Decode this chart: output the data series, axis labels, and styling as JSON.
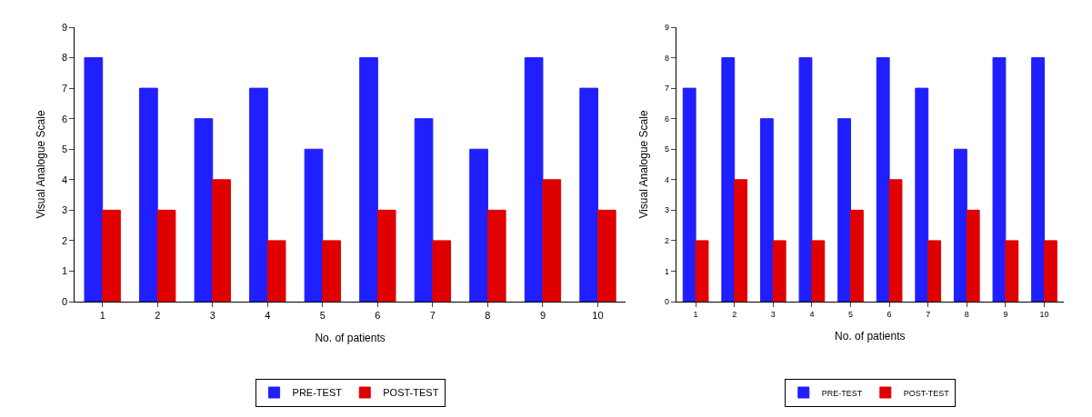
{
  "chart_data": [
    {
      "type": "bar",
      "xlabel": "No. of patients",
      "ylabel": "Visual Analogue Scale",
      "categories": [
        "1",
        "2",
        "3",
        "4",
        "5",
        "6",
        "7",
        "8",
        "9",
        "10"
      ],
      "series": [
        {
          "name": "PRE-TEST",
          "color": "#1f1fff",
          "values": [
            8,
            7,
            6,
            7,
            5,
            8,
            6,
            5,
            8,
            7
          ]
        },
        {
          "name": "POST-TEST",
          "color": "#e00000",
          "values": [
            3,
            3,
            4,
            2,
            2,
            3,
            2,
            3,
            4,
            3
          ]
        }
      ],
      "ylim": [
        0,
        9
      ],
      "yticks": [
        0,
        1,
        2,
        3,
        4,
        5,
        6,
        7,
        8,
        9
      ],
      "legend": "bottom"
    },
    {
      "type": "bar",
      "xlabel": "No. of patients",
      "ylabel": "Visual Analogue Scale",
      "categories": [
        "1",
        "2",
        "3",
        "4",
        "5",
        "6",
        "7",
        "8",
        "9",
        "10"
      ],
      "series": [
        {
          "name": "PRE-TEST",
          "color": "#1f1fff",
          "values": [
            7,
            8,
            6,
            8,
            6,
            8,
            7,
            5,
            8,
            8
          ]
        },
        {
          "name": "POST-TEST",
          "color": "#e00000",
          "values": [
            2,
            4,
            2,
            2,
            3,
            4,
            2,
            3,
            2,
            2
          ]
        }
      ],
      "ylim": [
        0,
        9
      ],
      "yticks": [
        0,
        1,
        2,
        3,
        4,
        5,
        6,
        7,
        8,
        9
      ],
      "legend": "bottom"
    }
  ]
}
